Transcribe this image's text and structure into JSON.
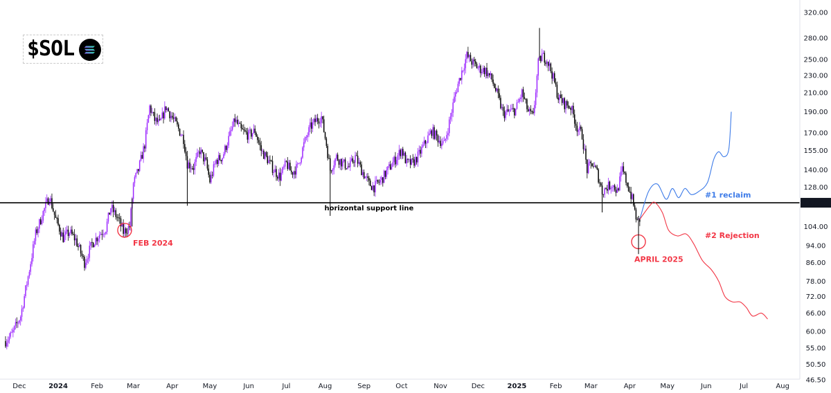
{
  "logo": {
    "ticker": "$SOL",
    "icon": "solana-logo-icon"
  },
  "chart_data": {
    "type": "candlestick",
    "scale": "log",
    "x_axis_labels": [
      "Dec",
      "2024",
      "Feb",
      "Mar",
      "Apr",
      "May",
      "Jun",
      "Jul",
      "Aug",
      "Sep",
      "Oct",
      "Nov",
      "Dec",
      "2025",
      "Feb",
      "Mar",
      "Apr",
      "May",
      "Jun",
      "Jul",
      "Aug"
    ],
    "y_axis_labels": [
      320.0,
      280.0,
      250.0,
      230.0,
      210.0,
      190.0,
      170.0,
      155.0,
      140.0,
      128.0,
      117.84,
      104.0,
      94.0,
      86.0,
      78.0,
      72.0,
      66.0,
      60.0,
      55.0,
      50.5,
      46.5
    ],
    "ylim": [
      44,
      340
    ],
    "colors": {
      "up": "#9c27ff",
      "down": "#000000",
      "reclaim": "#3d7be8",
      "rejection": "#f23645",
      "support": "#000000"
    },
    "price_path": [
      [
        "2023-11-20",
        57
      ],
      [
        "2023-11-25",
        59
      ],
      [
        "2023-12-02",
        65
      ],
      [
        "2023-12-08",
        80
      ],
      [
        "2023-12-14",
        100
      ],
      [
        "2023-12-20",
        112
      ],
      [
        "2023-12-25",
        122
      ],
      [
        "2023-12-30",
        108
      ],
      [
        "2024-01-05",
        98
      ],
      [
        "2024-01-10",
        101
      ],
      [
        "2024-01-15",
        97
      ],
      [
        "2024-01-22",
        86
      ],
      [
        "2024-01-28",
        95
      ],
      [
        "2024-02-03",
        100
      ],
      [
        "2024-02-08",
        103
      ],
      [
        "2024-02-12",
        115
      ],
      [
        "2024-02-18",
        108
      ],
      [
        "2024-02-22",
        101
      ],
      [
        "2024-02-27",
        104
      ],
      [
        "2024-03-01",
        130
      ],
      [
        "2024-03-05",
        140
      ],
      [
        "2024-03-10",
        160
      ],
      [
        "2024-03-14",
        195
      ],
      [
        "2024-03-18",
        182
      ],
      [
        "2024-03-22",
        178
      ],
      [
        "2024-03-27",
        195
      ],
      [
        "2024-04-03",
        180
      ],
      [
        "2024-04-10",
        165
      ],
      [
        "2024-04-13",
        145
      ],
      [
        "2024-04-18",
        142
      ],
      [
        "2024-04-23",
        155
      ],
      [
        "2024-04-28",
        145
      ],
      [
        "2024-05-01",
        132
      ],
      [
        "2024-05-06",
        147
      ],
      [
        "2024-05-11",
        150
      ],
      [
        "2024-05-16",
        165
      ],
      [
        "2024-05-21",
        182
      ],
      [
        "2024-05-26",
        172
      ],
      [
        "2024-06-01",
        168
      ],
      [
        "2024-06-06",
        172
      ],
      [
        "2024-06-11",
        155
      ],
      [
        "2024-06-16",
        148
      ],
      [
        "2024-06-21",
        140
      ],
      [
        "2024-06-26",
        135
      ],
      [
        "2024-07-01",
        145
      ],
      [
        "2024-07-05",
        138
      ],
      [
        "2024-07-10",
        142
      ],
      [
        "2024-07-15",
        160
      ],
      [
        "2024-07-20",
        175
      ],
      [
        "2024-07-25",
        182
      ],
      [
        "2024-07-29",
        185
      ],
      [
        "2024-08-02",
        160
      ],
      [
        "2024-08-05",
        140
      ],
      [
        "2024-08-10",
        150
      ],
      [
        "2024-08-15",
        145
      ],
      [
        "2024-08-20",
        142
      ],
      [
        "2024-08-25",
        150
      ],
      [
        "2024-08-30",
        140
      ],
      [
        "2024-09-05",
        130
      ],
      [
        "2024-09-09",
        128
      ],
      [
        "2024-09-15",
        133
      ],
      [
        "2024-09-20",
        140
      ],
      [
        "2024-09-26",
        148
      ],
      [
        "2024-10-01",
        156
      ],
      [
        "2024-10-05",
        145
      ],
      [
        "2024-10-10",
        145
      ],
      [
        "2024-10-15",
        152
      ],
      [
        "2024-10-20",
        162
      ],
      [
        "2024-10-25",
        172
      ],
      [
        "2024-10-30",
        165
      ],
      [
        "2024-11-04",
        160
      ],
      [
        "2024-11-09",
        185
      ],
      [
        "2024-11-13",
        210
      ],
      [
        "2024-11-18",
        235
      ],
      [
        "2024-11-22",
        255
      ],
      [
        "2024-11-27",
        245
      ],
      [
        "2024-12-02",
        238
      ],
      [
        "2024-12-07",
        236
      ],
      [
        "2024-12-12",
        225
      ],
      [
        "2024-12-17",
        205
      ],
      [
        "2024-12-21",
        188
      ],
      [
        "2024-12-26",
        190
      ],
      [
        "2024-12-31",
        192
      ],
      [
        "2025-01-05",
        210
      ],
      [
        "2025-01-10",
        190
      ],
      [
        "2025-01-14",
        185
      ],
      [
        "2025-01-18",
        245
      ],
      [
        "2025-01-21",
        255
      ],
      [
        "2025-01-25",
        250
      ],
      [
        "2025-01-29",
        232
      ],
      [
        "2025-02-03",
        205
      ],
      [
        "2025-02-08",
        198
      ],
      [
        "2025-02-13",
        195
      ],
      [
        "2025-02-18",
        175
      ],
      [
        "2025-02-22",
        168
      ],
      [
        "2025-02-26",
        140
      ],
      [
        "2025-03-02",
        145
      ],
      [
        "2025-03-06",
        138
      ],
      [
        "2025-03-10",
        125
      ],
      [
        "2025-03-14",
        128
      ],
      [
        "2025-03-18",
        130
      ],
      [
        "2025-03-22",
        125
      ],
      [
        "2025-03-26",
        140
      ],
      [
        "2025-03-30",
        130
      ],
      [
        "2025-04-03",
        120
      ],
      [
        "2025-04-07",
        106
      ],
      [
        "2025-04-09",
        108
      ]
    ],
    "wick_spikes": [
      {
        "date": "2024-02-29",
        "low": 104
      },
      {
        "date": "2024-04-13",
        "low": 116
      },
      {
        "date": "2024-08-05",
        "low": 110
      },
      {
        "date": "2025-01-19",
        "high": 295
      },
      {
        "date": "2025-03-10",
        "low": 112
      }
    ],
    "support_line": {
      "price": 117.84,
      "label": "horizontal support line",
      "price_label": "117.84"
    },
    "scenarios": [
      {
        "name": "#1 reclaim",
        "path": [
          [
            "2025-04-09",
            108
          ],
          [
            "2025-04-16",
            125
          ],
          [
            "2025-04-23",
            130
          ],
          [
            "2025-04-30",
            120
          ],
          [
            "2025-05-05",
            127
          ],
          [
            "2025-05-10",
            121
          ],
          [
            "2025-05-15",
            127
          ],
          [
            "2025-05-20",
            123
          ],
          [
            "2025-05-26",
            125
          ],
          [
            "2025-06-02",
            131
          ],
          [
            "2025-06-07",
            148
          ],
          [
            "2025-06-11",
            154
          ],
          [
            "2025-06-15",
            150
          ],
          [
            "2025-06-19",
            156
          ],
          [
            "2025-06-21",
            190
          ]
        ]
      },
      {
        "name": "#2 Rejection",
        "path": [
          [
            "2025-04-09",
            108
          ],
          [
            "2025-04-17",
            116
          ],
          [
            "2025-04-21",
            118
          ],
          [
            "2025-04-27",
            112
          ],
          [
            "2025-05-02",
            102
          ],
          [
            "2025-05-09",
            99
          ],
          [
            "2025-05-16",
            100
          ],
          [
            "2025-05-22",
            95
          ],
          [
            "2025-05-29",
            87
          ],
          [
            "2025-06-05",
            83
          ],
          [
            "2025-06-11",
            78
          ],
          [
            "2025-06-16",
            72
          ],
          [
            "2025-06-22",
            70
          ],
          [
            "2025-06-28",
            70
          ],
          [
            "2025-07-03",
            68
          ],
          [
            "2025-07-08",
            65
          ],
          [
            "2025-07-15",
            66
          ],
          [
            "2025-07-20",
            64
          ]
        ]
      }
    ],
    "annotations": [
      {
        "text": "FEB 2024",
        "date": "2024-02-23",
        "price": 102
      },
      {
        "text": "APRIL 2025",
        "date": "2025-04-08",
        "price": 96
      }
    ]
  }
}
